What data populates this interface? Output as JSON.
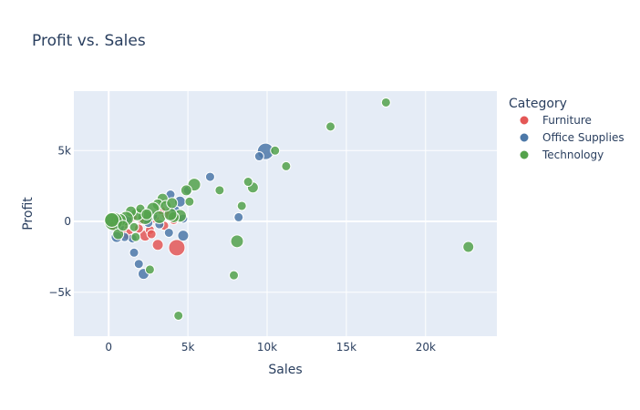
{
  "chart_data": {
    "type": "scatter",
    "title": "Profit vs. Sales",
    "xlabel": "Sales",
    "ylabel": "Profit",
    "xlim": [
      -2200,
      24500
    ],
    "ylim": [
      -8100,
      9200
    ],
    "x_ticks": [
      {
        "value": 0,
        "label": "0"
      },
      {
        "value": 5000,
        "label": "5k"
      },
      {
        "value": 10000,
        "label": "10k"
      },
      {
        "value": 15000,
        "label": "15k"
      },
      {
        "value": 20000,
        "label": "20k"
      }
    ],
    "y_ticks": [
      {
        "value": -5000,
        "label": "−5k"
      },
      {
        "value": 0,
        "label": "0"
      },
      {
        "value": 5000,
        "label": "5k"
      }
    ],
    "grid": true,
    "legend": {
      "title": "Category",
      "placement": "right"
    },
    "series": [
      {
        "name": "Furniture",
        "color": "#e45756",
        "points": [
          [
            4300,
            -1850,
            9
          ],
          [
            3100,
            -1650,
            6
          ],
          [
            2300,
            -1000,
            6
          ],
          [
            1200,
            -900,
            6
          ],
          [
            800,
            -700,
            5
          ],
          [
            1900,
            -500,
            5
          ],
          [
            2600,
            -600,
            5
          ],
          [
            3500,
            -300,
            5
          ],
          [
            4100,
            100,
            5
          ],
          [
            2900,
            200,
            5
          ],
          [
            1500,
            300,
            5
          ],
          [
            500,
            100,
            6
          ],
          [
            3600,
            500,
            5
          ],
          [
            4200,
            300,
            5
          ],
          [
            1000,
            -200,
            5
          ],
          [
            2100,
            100,
            5
          ],
          [
            300,
            -300,
            5
          ],
          [
            3300,
            800,
            5
          ],
          [
            2700,
            -900,
            5
          ]
        ]
      },
      {
        "name": "Office Supplies",
        "color": "#4c78a8",
        "points": [
          [
            9900,
            4950,
            9
          ],
          [
            9500,
            4600,
            5
          ],
          [
            6400,
            3150,
            5
          ],
          [
            8200,
            300,
            5
          ],
          [
            4700,
            -1000,
            6
          ],
          [
            2200,
            -3700,
            6
          ],
          [
            1900,
            -3000,
            5
          ],
          [
            1600,
            -2200,
            5
          ],
          [
            1500,
            -1200,
            5
          ],
          [
            1000,
            -1100,
            5
          ],
          [
            500,
            -1100,
            6
          ],
          [
            3800,
            -800,
            5
          ],
          [
            4700,
            200,
            5
          ],
          [
            3200,
            -200,
            5
          ],
          [
            2500,
            -100,
            5
          ],
          [
            700,
            -400,
            5
          ],
          [
            3900,
            1900,
            5
          ],
          [
            4500,
            1400,
            6
          ],
          [
            4200,
            800,
            5
          ],
          [
            2800,
            400,
            5
          ],
          [
            1200,
            200,
            5
          ],
          [
            5000,
            2200,
            5
          ]
        ]
      },
      {
        "name": "Technology",
        "color": "#54a24b",
        "points": [
          [
            17500,
            8400,
            5
          ],
          [
            22700,
            -1800,
            6
          ],
          [
            14000,
            6700,
            5
          ],
          [
            11200,
            3900,
            5
          ],
          [
            10500,
            5000,
            5
          ],
          [
            9100,
            2400,
            6
          ],
          [
            8800,
            2800,
            5
          ],
          [
            8400,
            1100,
            5
          ],
          [
            8100,
            -1400,
            7
          ],
          [
            7900,
            -3800,
            5
          ],
          [
            7000,
            2200,
            5
          ],
          [
            5400,
            2600,
            7
          ],
          [
            5100,
            1400,
            5
          ],
          [
            4900,
            2200,
            6
          ],
          [
            4400,
            -6650,
            5
          ],
          [
            2600,
            -3400,
            5
          ],
          [
            4500,
            400,
            7
          ],
          [
            4100,
            300,
            6
          ],
          [
            3400,
            1600,
            6
          ],
          [
            3100,
            1200,
            6
          ],
          [
            2800,
            900,
            7
          ],
          [
            2300,
            300,
            8
          ],
          [
            1800,
            500,
            7
          ],
          [
            1400,
            700,
            6
          ],
          [
            1100,
            200,
            8
          ],
          [
            700,
            100,
            7
          ],
          [
            300,
            0,
            10
          ],
          [
            200,
            100,
            8
          ],
          [
            600,
            -900,
            6
          ],
          [
            1600,
            -400,
            5
          ],
          [
            3200,
            300,
            7
          ],
          [
            2000,
            900,
            5
          ],
          [
            3900,
            500,
            7
          ],
          [
            1700,
            -1100,
            5
          ],
          [
            2400,
            500,
            6
          ],
          [
            3600,
            1100,
            6
          ],
          [
            900,
            -300,
            6
          ],
          [
            4000,
            1300,
            6
          ]
        ]
      }
    ]
  }
}
